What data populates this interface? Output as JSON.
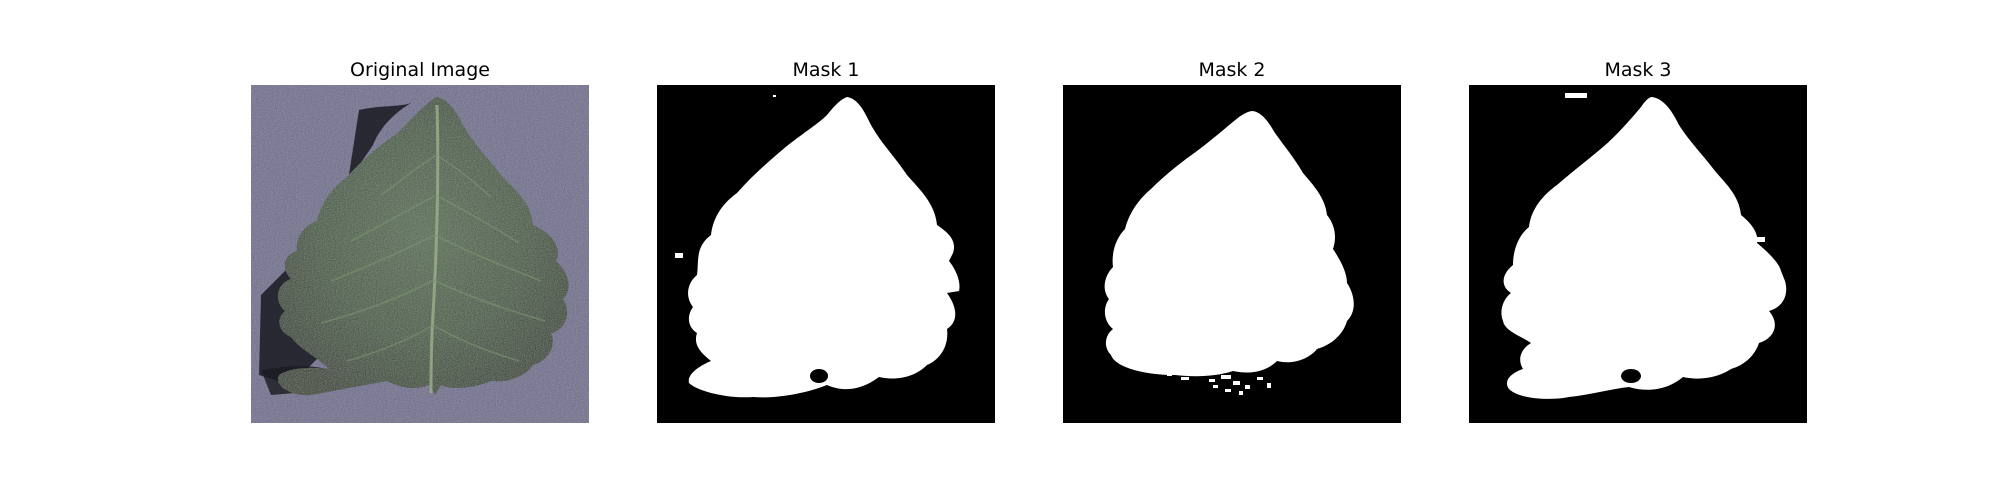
{
  "figure": {
    "panels": [
      {
        "title": "Original Image",
        "kind": "leaf-photo"
      },
      {
        "title": "Mask 1",
        "kind": "binary-mask"
      },
      {
        "title": "Mask 2",
        "kind": "binary-mask"
      },
      {
        "title": "Mask 3",
        "kind": "binary-mask"
      }
    ],
    "colors": {
      "background": "#ffffff",
      "mask_foreground": "#ffffff",
      "mask_background": "#000000",
      "leaf": "#3f5a3c",
      "photo_background": "#6a6a8a"
    }
  }
}
